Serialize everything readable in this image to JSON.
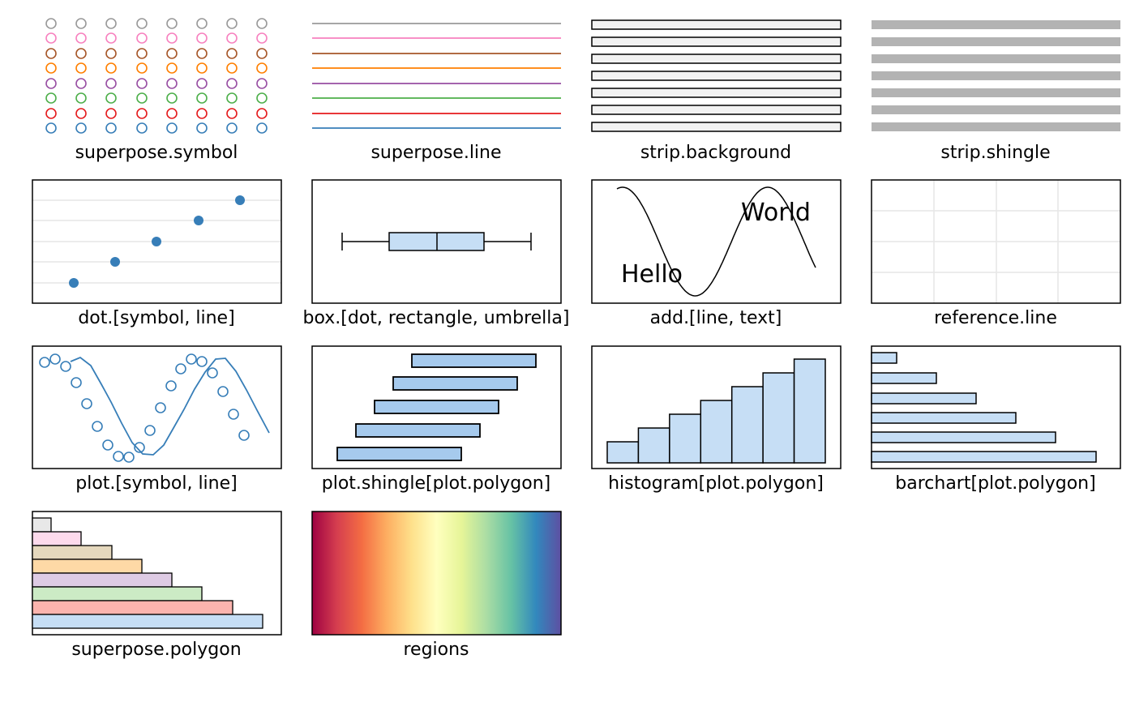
{
  "labels": {
    "superpose_symbol": "superpose.symbol",
    "superpose_line": "superpose.line",
    "strip_background": "strip.background",
    "strip_shingle": "strip.shingle",
    "dot": "dot.[symbol, line]",
    "box": "box.[dot, rectangle, umbrella]",
    "add": "add.[line, text]",
    "reference_line": "reference.line",
    "plot": "plot.[symbol, line]",
    "plot_shingle": "plot.shingle[plot.polygon]",
    "histogram": "histogram[plot.polygon]",
    "barchart": "barchart[plot.polygon]",
    "superpose_polygon": "superpose.polygon",
    "regions": "regions"
  },
  "add_text": {
    "hello": "Hello",
    "world": "World"
  },
  "colors": {
    "superpose_symbol": [
      "#999999",
      "#F781BF",
      "#A65628",
      "#FF7F00",
      "#984EA3",
      "#4DAF4A",
      "#E41A1C",
      "#377EB8"
    ],
    "superpose_polygon": [
      "#E8E8E8",
      "#FDDAEC",
      "#E5D8BD",
      "#FED9A6",
      "#DECBE4",
      "#CCEBC5",
      "#FBB4AE",
      "#C6DEF5"
    ],
    "strip_background": "#F2F2F2",
    "strip_shingle": "#B3B3B3",
    "dot": "#377EB8",
    "box_fill": "#C6DEF5",
    "polygon_fill": "#C6DEF5",
    "shingle_fill": "#A6CAED",
    "plot_line": "#377EB8",
    "reference": "#E6E6E6",
    "regions": [
      "#9E0142",
      "#D53E4F",
      "#F46D43",
      "#FDAE61",
      "#FEE08B",
      "#FFFFBF",
      "#E6F598",
      "#ABDDA4",
      "#66C2A5",
      "#3288BD",
      "#5E4FA2"
    ]
  }
}
